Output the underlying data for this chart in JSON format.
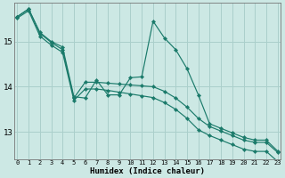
{
  "xlabel": "Humidex (Indice chaleur)",
  "bg_color": "#cce8e4",
  "grid_color": "#aacfcb",
  "line_color": "#1a7a6a",
  "x_ticks": [
    0,
    1,
    2,
    3,
    4,
    5,
    6,
    7,
    8,
    9,
    10,
    11,
    12,
    13,
    14,
    15,
    16,
    17,
    18,
    19,
    20,
    21,
    22,
    23
  ],
  "y_ticks": [
    13,
    14,
    15
  ],
  "ylim": [
    12.4,
    15.85
  ],
  "xlim": [
    -0.3,
    23.3
  ],
  "series_main": [
    15.55,
    15.72,
    15.2,
    15.0,
    14.88,
    13.78,
    13.75,
    14.15,
    13.82,
    13.82,
    14.2,
    14.22,
    15.45,
    15.08,
    14.82,
    14.4,
    13.82,
    13.18,
    13.08,
    12.98,
    12.88,
    12.82,
    12.82,
    12.58
  ],
  "series_trend1": [
    15.55,
    15.72,
    15.18,
    14.98,
    14.82,
    13.75,
    14.1,
    14.1,
    14.08,
    14.06,
    14.04,
    14.02,
    14.0,
    13.9,
    13.75,
    13.55,
    13.3,
    13.12,
    13.02,
    12.92,
    12.82,
    12.77,
    12.77,
    12.55
  ],
  "series_trend2": [
    15.52,
    15.68,
    15.12,
    14.92,
    14.76,
    13.7,
    13.95,
    13.95,
    13.92,
    13.88,
    13.84,
    13.8,
    13.76,
    13.65,
    13.5,
    13.3,
    13.05,
    12.92,
    12.82,
    12.72,
    12.62,
    12.57,
    12.57,
    12.35
  ]
}
